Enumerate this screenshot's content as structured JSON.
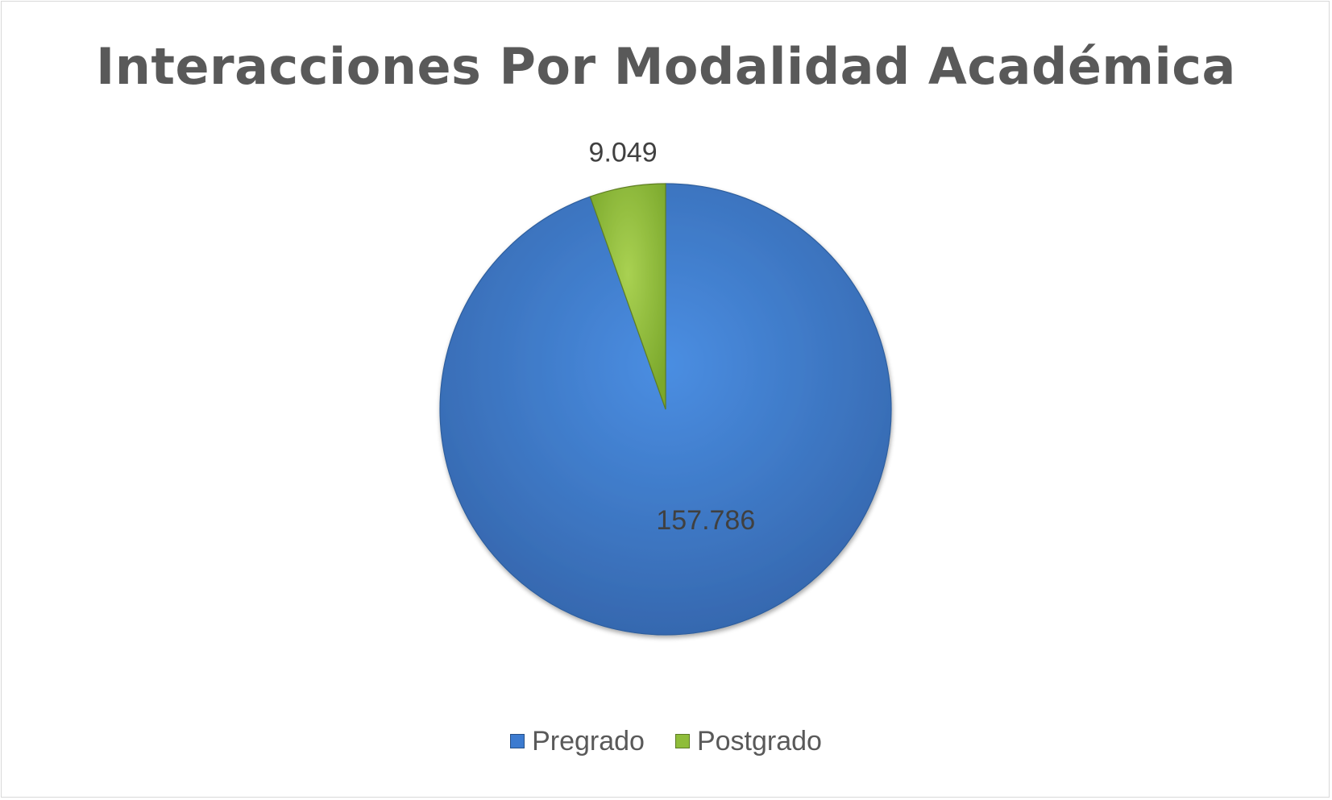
{
  "chart_data": {
    "type": "pie",
    "title": "Interacciones Por Modalidad Académica",
    "categories": [
      "Pregrado",
      "Postgrado"
    ],
    "values": [
      157786,
      9049
    ],
    "data_labels": [
      "157.786",
      "9.049"
    ],
    "colors": [
      "#3c7bd0",
      "#8fbd3a"
    ],
    "legend_position": "bottom"
  }
}
